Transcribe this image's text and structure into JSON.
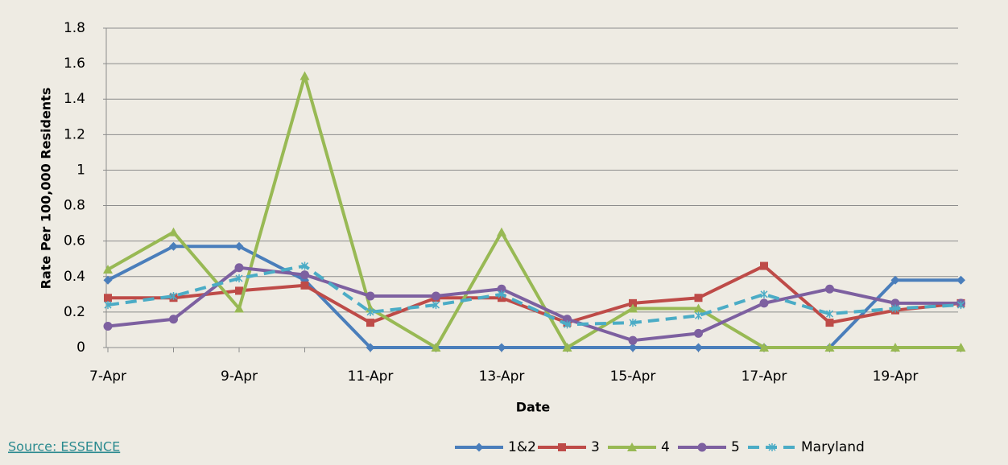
{
  "chart_data": {
    "type": "line",
    "x_label": "Date",
    "y_label": "Rate Per 100,000 Residents",
    "source": "Source: ESSENCE",
    "categories": [
      "7-Apr",
      null,
      "9-Apr",
      null,
      "11-Apr",
      null,
      "13-Apr",
      null,
      "15-Apr",
      null,
      "17-Apr",
      null,
      "19-Apr",
      null
    ],
    "series": [
      {
        "name": "1&2",
        "color": "#4a7ebb",
        "marker": "diamond",
        "values": [
          0.38,
          0.57,
          0.57,
          0.38,
          0,
          0,
          0,
          0,
          0,
          0,
          0,
          0,
          0.38,
          0.38
        ]
      },
      {
        "name": "3",
        "color": "#be4b48",
        "marker": "square",
        "values": [
          0.28,
          0.28,
          0.32,
          0.35,
          0.14,
          0.28,
          0.28,
          0.14,
          0.25,
          0.28,
          0.46,
          0.14,
          0.21,
          0.25
        ]
      },
      {
        "name": "4",
        "color": "#98b954",
        "marker": "triangle",
        "values": [
          0.44,
          0.65,
          0.22,
          1.53,
          0.22,
          0,
          0.65,
          0,
          0.22,
          0.22,
          0,
          0,
          0,
          0
        ]
      },
      {
        "name": "5",
        "color": "#7d60a0",
        "marker": "circle",
        "values": [
          0.12,
          0.16,
          0.45,
          0.41,
          0.29,
          0.29,
          0.33,
          0.16,
          0.04,
          0.08,
          0.25,
          0.33,
          0.25,
          0.25
        ]
      },
      {
        "name": "Maryland",
        "color": "#4bacc6",
        "marker": "x",
        "dashed": true,
        "values": [
          0.24,
          0.29,
          0.39,
          0.46,
          0.2,
          0.24,
          0.3,
          0.13,
          0.14,
          0.18,
          0.3,
          0.19,
          0.22,
          0.24
        ]
      }
    ],
    "ylim": [
      0,
      1.8
    ],
    "yticks": [
      0,
      0.2,
      0.4,
      0.6,
      0.8,
      1,
      1.2,
      1.4,
      1.6,
      1.8
    ],
    "grid": true
  }
}
